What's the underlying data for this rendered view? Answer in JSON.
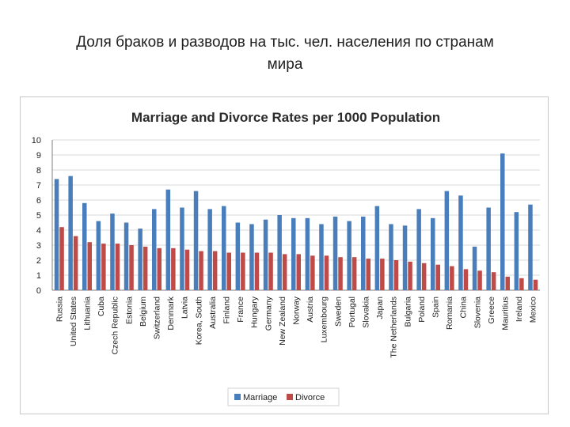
{
  "slide": {
    "title_line1": "Доля браков и разводов на тыс. чел. населения по странам",
    "title_line2": "мира"
  },
  "colors": {
    "marriage": "#4a7ebb",
    "divorce": "#be4b48",
    "grid": "#d9d9d9",
    "axis": "#7f7f7f"
  },
  "chart_data": {
    "type": "bar",
    "title": "Marriage and Divorce Rates per 1000 Population",
    "xlabel": "",
    "ylabel": "",
    "ylim": [
      0,
      10
    ],
    "yticks": [
      0,
      1,
      2,
      3,
      4,
      5,
      6,
      7,
      8,
      9,
      10
    ],
    "grid": true,
    "legend_position": "bottom",
    "categories": [
      "Russia",
      "United States",
      "Lithuania",
      "Cuba",
      "Czech Republic",
      "Estonia",
      "Belgium",
      "Switzerland",
      "Denmark",
      "Latvia",
      "Korea, South",
      "Australia",
      "Finland",
      "France",
      "Hungary",
      "Germany",
      "New Zealand",
      "Norway",
      "Austria",
      "Luxembourg",
      "Sweden",
      "Portugal",
      "Slovakia",
      "Japan",
      "The Netherlands",
      "Bulgaria",
      "Poland",
      "Spain",
      "Romania",
      "China",
      "Slovenia",
      "Greece",
      "Mauritius",
      "Ireland",
      "Mexico"
    ],
    "series": [
      {
        "name": "Marriage",
        "values": [
          7.4,
          7.6,
          5.8,
          4.6,
          5.1,
          4.5,
          4.1,
          5.4,
          6.7,
          5.5,
          6.6,
          5.4,
          5.6,
          4.5,
          4.4,
          4.7,
          5.0,
          4.8,
          4.8,
          4.4,
          4.9,
          4.6,
          4.9,
          5.6,
          4.4,
          4.3,
          5.4,
          4.8,
          6.6,
          6.3,
          2.9,
          5.5,
          9.1,
          5.2,
          5.7
        ]
      },
      {
        "name": "Divorce",
        "values": [
          4.2,
          3.6,
          3.2,
          3.1,
          3.1,
          3.0,
          2.9,
          2.8,
          2.8,
          2.7,
          2.6,
          2.6,
          2.5,
          2.5,
          2.5,
          2.5,
          2.4,
          2.4,
          2.3,
          2.3,
          2.2,
          2.2,
          2.1,
          2.1,
          2.0,
          1.9,
          1.8,
          1.7,
          1.6,
          1.4,
          1.3,
          1.2,
          0.9,
          0.8,
          0.7
        ]
      }
    ]
  }
}
